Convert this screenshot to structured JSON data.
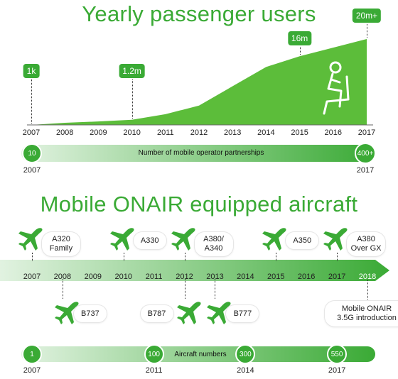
{
  "section1": {
    "title": "Yearly passenger users",
    "years": [
      "2007",
      "2008",
      "2009",
      "2010",
      "2011",
      "2012",
      "2013",
      "2014",
      "2015",
      "2016",
      "2017"
    ],
    "callouts": [
      {
        "label": "1k",
        "year": "2007"
      },
      {
        "label": "1.2m",
        "year": "2010"
      },
      {
        "label": "16m",
        "year": "2015"
      },
      {
        "label": "20m+",
        "year": "2017"
      }
    ],
    "partner_bar": {
      "label": "Number of mobile operator partnerships",
      "start_value": "10",
      "start_year": "2007",
      "end_value": "400+",
      "end_year": "2017"
    }
  },
  "section2": {
    "title": "Mobile ONAIR equipped aircraft",
    "timeline_years": [
      "2007",
      "2008",
      "2009",
      "2010",
      "2011",
      "2012",
      "2013",
      "2014",
      "2015",
      "2016",
      "2017",
      "2018"
    ],
    "aircraft_above": [
      {
        "label": "A320\nFamily",
        "year": "2007"
      },
      {
        "label": "A330",
        "year": "2010"
      },
      {
        "label": "A380/\nA340",
        "year": "2012"
      },
      {
        "label": "A350",
        "year": "2015"
      },
      {
        "label": "A380\nOver GX",
        "year": "2017"
      }
    ],
    "aircraft_below": [
      {
        "label": "B737",
        "year": "2008"
      },
      {
        "label": "B787",
        "year": "2012"
      },
      {
        "label": "B777",
        "year": "2013"
      }
    ],
    "introduction_note": "Mobile ONAIR\n3.5G introduction",
    "aircraft_numbers_bar": {
      "label": "Aircraft numbers",
      "points": [
        {
          "value": "1",
          "year": "2007"
        },
        {
          "value": "100",
          "year": "2011"
        },
        {
          "value": "300",
          "year": "2014"
        },
        {
          "value": "550",
          "year": "2017"
        }
      ]
    }
  },
  "colors": {
    "accent": "#3aaa35",
    "light_accent": "#8fd16a"
  },
  "chart_data": [
    {
      "type": "area",
      "title": "Yearly passenger users",
      "x": [
        "2007",
        "2008",
        "2009",
        "2010",
        "2011",
        "2012",
        "2013",
        "2014",
        "2015",
        "2016",
        "2017"
      ],
      "series": [
        {
          "values": [
            0.001,
            0.5,
            0.8,
            1.2,
            2.5,
            4.5,
            9,
            13.5,
            16,
            18,
            20
          ]
        }
      ],
      "annotations": [
        "1k",
        "1.2m",
        "16m",
        "20m+"
      ]
    }
  ]
}
